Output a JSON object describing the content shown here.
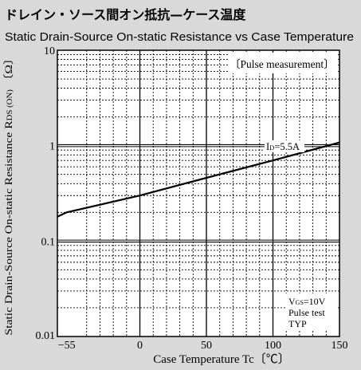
{
  "chart_data": {
    "type": "line",
    "title": "ドレイン・ソース間オン抵抗—ケース温度",
    "subtitle": "Static Drain-Source On-static Resistance vs Case Temperature",
    "xlabel": "Case Temperature   Tc〔℃〕",
    "ylabel": "Static Drain-Source On-static Resistance RDS (ON) 〔Ω〕",
    "ylabel_parts": {
      "main": "Static Drain-Source On-static Resistance R",
      "sub": "DS (ON)",
      "unit": " 〔Ω〕"
    },
    "xlim": [
      -62,
      150
    ],
    "ylim": [
      0.01,
      10
    ],
    "y_scale": "log",
    "grid": true,
    "x_ticks": [
      -55,
      0,
      50,
      100,
      150
    ],
    "x_tick_labels": [
      "−55",
      "0",
      "50",
      "100",
      "150"
    ],
    "y_ticks": [
      0.01,
      0.1,
      1,
      10
    ],
    "y_tick_labels": [
      "0.01",
      "0.1",
      "1",
      "10"
    ],
    "series": [
      {
        "name": "ID=5.5A",
        "x": [
          -62,
          -55,
          0,
          50,
          100,
          150
        ],
        "y": [
          0.18,
          0.2,
          0.3,
          0.46,
          0.7,
          1.08
        ]
      }
    ],
    "annotations": {
      "box_label": "〔Pulse measurement〕",
      "series_label_main": "I",
      "series_label_sub": "D",
      "series_label_rest": "=5.5A",
      "conditions": [
        {
          "main": "V",
          "sub": "GS",
          "rest": "=10V"
        },
        {
          "main": "Pulse test",
          "sub": "",
          "rest": ""
        },
        {
          "main": "TYP",
          "sub": "",
          "rest": ""
        }
      ]
    }
  }
}
